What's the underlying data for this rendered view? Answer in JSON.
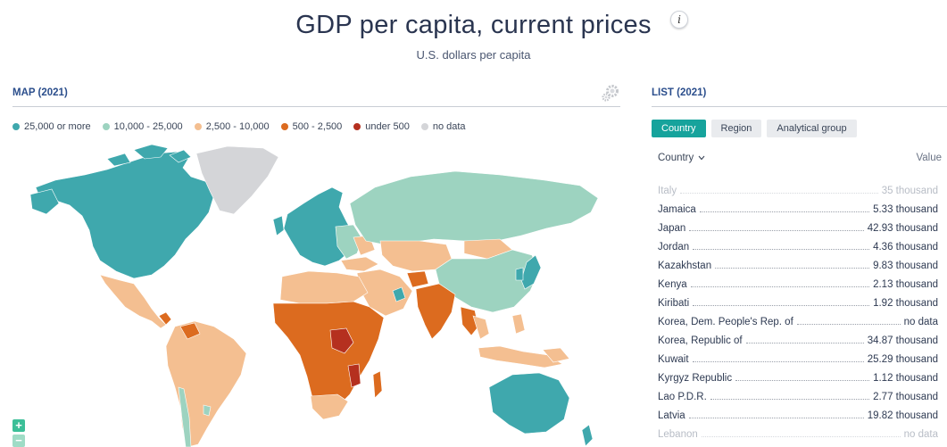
{
  "header": {
    "title": "GDP per capita, current prices",
    "info_icon": "i",
    "subtitle": "U.S. dollars per capita"
  },
  "map_panel": {
    "heading": "MAP (2021)",
    "legend": [
      {
        "label": "25,000 or more",
        "color": "#3fa8ad"
      },
      {
        "label": "10,000 - 25,000",
        "color": "#9dd3c0"
      },
      {
        "label": "2,500 - 10,000",
        "color": "#f4bf91"
      },
      {
        "label": "500 - 2,500",
        "color": "#dc6b1f"
      },
      {
        "label": "under 500",
        "color": "#b5301f"
      },
      {
        "label": "no data",
        "color": "#d4d5d8"
      }
    ],
    "zoom_in": "+",
    "zoom_out": "−"
  },
  "list_panel": {
    "heading": "LIST (2021)",
    "tabs": [
      {
        "label": "Country",
        "active": true
      },
      {
        "label": "Region",
        "active": false
      },
      {
        "label": "Analytical group",
        "active": false
      }
    ],
    "column_country": "Country",
    "column_value": "Value",
    "rows": [
      {
        "name": "Italy",
        "value": "35 thousand"
      },
      {
        "name": "Jamaica",
        "value": "5.33 thousand"
      },
      {
        "name": "Japan",
        "value": "42.93 thousand"
      },
      {
        "name": "Jordan",
        "value": "4.36 thousand"
      },
      {
        "name": "Kazakhstan",
        "value": "9.83 thousand"
      },
      {
        "name": "Kenya",
        "value": "2.13 thousand"
      },
      {
        "name": "Kiribati",
        "value": "1.92 thousand"
      },
      {
        "name": "Korea, Dem. People's Rep. of",
        "value": "no data"
      },
      {
        "name": "Korea, Republic of",
        "value": "34.87 thousand"
      },
      {
        "name": "Kuwait",
        "value": "25.29 thousand"
      },
      {
        "name": "Kyrgyz Republic",
        "value": "1.12 thousand"
      },
      {
        "name": "Lao P.D.R.",
        "value": "2.77 thousand"
      },
      {
        "name": "Latvia",
        "value": "19.82 thousand"
      },
      {
        "name": "Lebanon",
        "value": "no data"
      }
    ]
  }
}
